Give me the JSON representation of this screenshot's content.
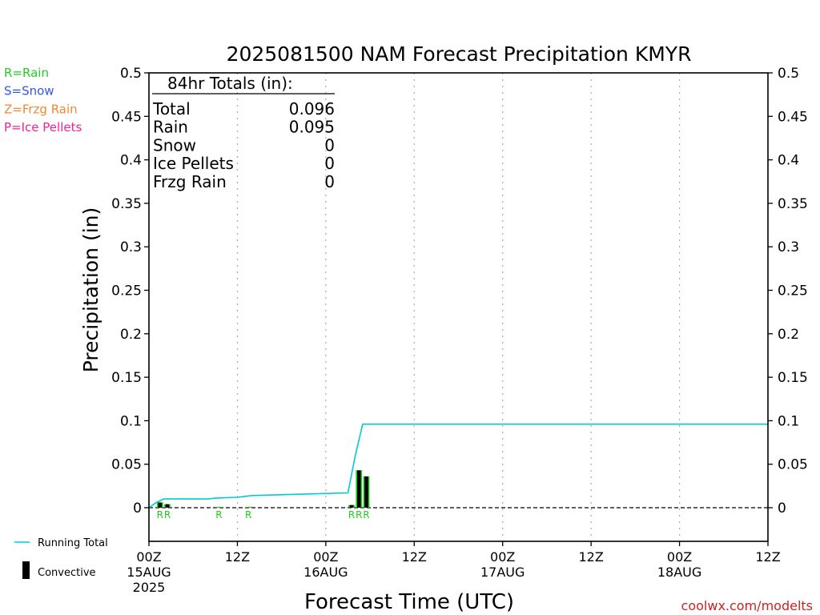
{
  "chart_data": {
    "type": "bar",
    "title": "2025081500 NAM Forecast Precipitation KMYR",
    "xlabel": "Forecast Time (UTC)",
    "ylabel": "Precipitation (in)",
    "ylim": [
      0,
      0.5
    ],
    "xlim_hours": [
      0,
      84
    ],
    "y_ticks": [
      "0",
      "0.05",
      "0.1",
      "0.15",
      "0.2",
      "0.25",
      "0.3",
      "0.35",
      "0.4",
      "0.45",
      "0.5"
    ],
    "x_ticks": [
      {
        "hour": 0,
        "line1": "00Z",
        "line2": "15AUG",
        "line3": "2025"
      },
      {
        "hour": 12,
        "line1": "12Z",
        "line2": "",
        "line3": ""
      },
      {
        "hour": 24,
        "line1": "00Z",
        "line2": "16AUG",
        "line3": ""
      },
      {
        "hour": 36,
        "line1": "12Z",
        "line2": "",
        "line3": ""
      },
      {
        "hour": 48,
        "line1": "00Z",
        "line2": "17AUG",
        "line3": ""
      },
      {
        "hour": 60,
        "line1": "12Z",
        "line2": "",
        "line3": ""
      },
      {
        "hour": 72,
        "line1": "00Z",
        "line2": "18AUG",
        "line3": ""
      },
      {
        "hour": 84,
        "line1": "12Z",
        "line2": "",
        "line3": ""
      }
    ],
    "grid": "vertical dotted",
    "bars": [
      {
        "hour": 1,
        "total": 0.006,
        "convective": 0.006,
        "ptype": "R"
      },
      {
        "hour": 2,
        "total": 0.004,
        "convective": 0.004,
        "ptype": "R"
      },
      {
        "hour": 9,
        "total": 0.001,
        "convective": 0.0,
        "ptype": "R"
      },
      {
        "hour": 13,
        "total": 0.001,
        "convective": 0.0,
        "ptype": "R"
      },
      {
        "hour": 27,
        "total": 0.003,
        "convective": 0.003,
        "ptype": "R"
      },
      {
        "hour": 28,
        "total": 0.043,
        "convective": 0.043,
        "ptype": "R"
      },
      {
        "hour": 29,
        "total": 0.036,
        "convective": 0.036,
        "ptype": "R"
      }
    ],
    "running_total": {
      "hours": [
        0,
        1,
        2,
        3,
        8,
        9,
        12,
        13,
        14,
        27,
        28,
        29,
        84
      ],
      "values": [
        0,
        0.006,
        0.01,
        0.01,
        0.01,
        0.011,
        0.012,
        0.013,
        0.014,
        0.017,
        0.06,
        0.096,
        0.096
      ]
    },
    "totals_box": {
      "heading": "84hr Totals (in):",
      "rows": [
        {
          "label": "Total",
          "value": "0.096"
        },
        {
          "label": "Rain",
          "value": "0.095"
        },
        {
          "label": "Snow",
          "value": "0"
        },
        {
          "label": "Ice Pellets",
          "value": "0"
        },
        {
          "label": "Frzg Rain",
          "value": "0"
        }
      ]
    },
    "ptype_legend": [
      {
        "text": "R=Rain",
        "color": "#22cc22"
      },
      {
        "text": "S=Snow",
        "color": "#3355ee"
      },
      {
        "text": "Z=Frzg Rain",
        "color": "#ee8833"
      },
      {
        "text": "P=Ice Pellets",
        "color": "#ee2299"
      }
    ],
    "line_legend": [
      {
        "text": "Running Total",
        "color": "#00cccc"
      },
      {
        "text": "Convective",
        "color": "#000000"
      }
    ],
    "colors": {
      "rain": "#22cc22",
      "convective": "#000000",
      "running_total": "#00cccc",
      "axis": "#000000",
      "grid": "#aaaaaa"
    },
    "credit": "coolwx.com/modelts"
  }
}
